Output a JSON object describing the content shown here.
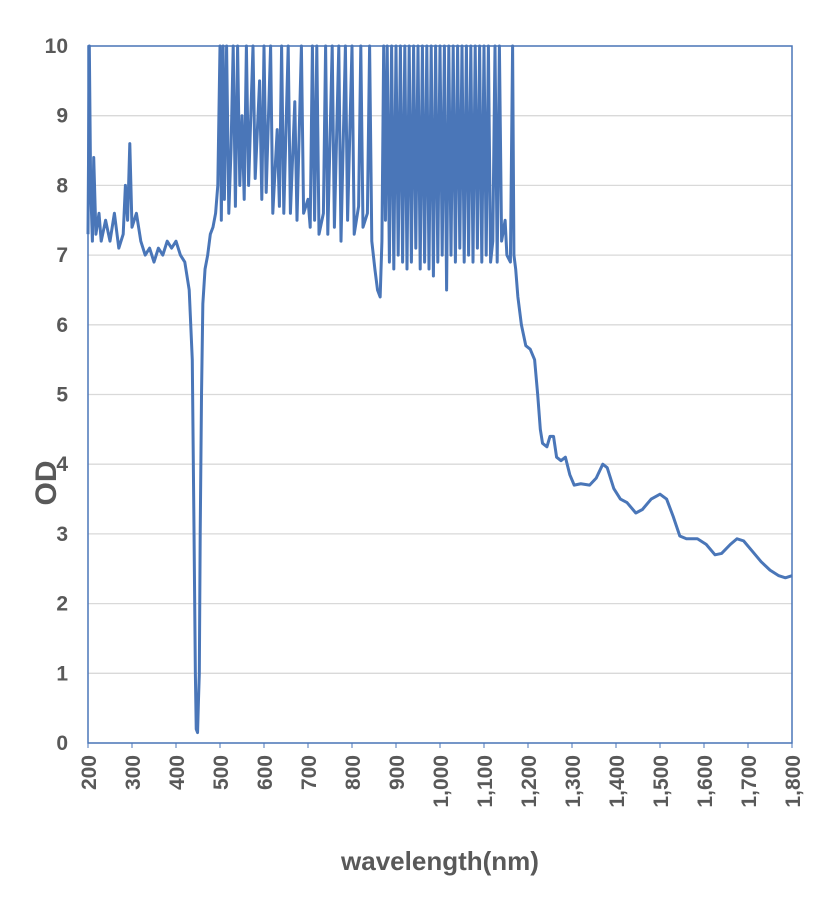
{
  "chart_data": {
    "type": "line",
    "x_label": "wavelength(nm)",
    "y_label": "OD",
    "color": "#4a76b8",
    "grid": true,
    "xlim": [
      200,
      1800
    ],
    "ylim": [
      0,
      10
    ],
    "xticks": [
      200,
      300,
      400,
      500,
      600,
      700,
      800,
      900,
      {
        "value": 1000,
        "label": "1,000"
      },
      {
        "value": 1100,
        "label": "1,100"
      },
      {
        "value": 1200,
        "label": "1,200"
      },
      {
        "value": 1300,
        "label": "1,300"
      },
      {
        "value": 1400,
        "label": "1,400"
      },
      {
        "value": 1500,
        "label": "1,500"
      },
      {
        "value": 1600,
        "label": "1,600"
      },
      {
        "value": 1700,
        "label": "1,700"
      },
      {
        "value": 1800,
        "label": "1,800"
      }
    ],
    "yticks": [
      0,
      1,
      2,
      3,
      4,
      5,
      6,
      7,
      8,
      9,
      10
    ],
    "x": [
      200,
      203,
      206,
      210,
      213,
      218,
      225,
      230,
      240,
      250,
      260,
      270,
      280,
      285,
      290,
      295,
      300,
      310,
      320,
      330,
      340,
      350,
      360,
      370,
      380,
      390,
      400,
      410,
      420,
      430,
      437,
      441,
      444,
      446,
      449,
      451,
      453,
      455,
      458,
      461,
      466,
      472,
      478,
      484,
      490,
      495,
      500,
      503,
      507,
      510,
      515,
      520,
      525,
      530,
      535,
      540,
      545,
      550,
      555,
      560,
      565,
      575,
      580,
      590,
      595,
      600,
      605,
      615,
      620,
      630,
      635,
      640,
      645,
      655,
      660,
      670,
      675,
      685,
      690,
      700,
      705,
      710,
      715,
      720,
      725,
      735,
      740,
      745,
      755,
      760,
      770,
      775,
      785,
      790,
      800,
      805,
      815,
      820,
      825,
      835,
      840,
      845,
      852,
      858,
      864,
      868,
      872,
      876,
      880,
      885,
      890,
      895,
      900,
      905,
      910,
      915,
      920,
      925,
      930,
      935,
      940,
      945,
      950,
      955,
      960,
      965,
      970,
      975,
      980,
      985,
      990,
      995,
      1000,
      1005,
      1010,
      1015,
      1020,
      1025,
      1030,
      1035,
      1040,
      1045,
      1050,
      1055,
      1060,
      1065,
      1070,
      1075,
      1080,
      1085,
      1090,
      1095,
      1100,
      1105,
      1110,
      1115,
      1120,
      1125,
      1130,
      1135,
      1140,
      1148,
      1152,
      1160,
      1165,
      1168,
      1172,
      1177,
      1185,
      1195,
      1205,
      1215,
      1222,
      1228,
      1233,
      1243,
      1250,
      1258,
      1265,
      1275,
      1285,
      1295,
      1305,
      1320,
      1340,
      1355,
      1370,
      1380,
      1395,
      1410,
      1425,
      1445,
      1460,
      1480,
      1500,
      1515,
      1530,
      1545,
      1560,
      1585,
      1605,
      1625,
      1640,
      1660,
      1675,
      1690,
      1710,
      1730,
      1750,
      1770,
      1785,
      1800
    ],
    "values": [
      7.3,
      10,
      8,
      7.2,
      8.4,
      7.3,
      7.6,
      7.2,
      7.5,
      7.2,
      7.6,
      7.1,
      7.3,
      8,
      7.5,
      8.6,
      7.4,
      7.6,
      7.2,
      7,
      7.1,
      6.9,
      7.1,
      7,
      7.2,
      7.1,
      7.2,
      7,
      6.9,
      6.5,
      5.5,
      3,
      1,
      0.2,
      0.15,
      0.6,
      1,
      3,
      5,
      6.3,
      6.8,
      7,
      7.3,
      7.4,
      7.6,
      8,
      10,
      7.5,
      10,
      7.8,
      10,
      7.6,
      8.5,
      10,
      7.7,
      10,
      8,
      9,
      7.8,
      10,
      8,
      10,
      8.1,
      9.5,
      7.8,
      10,
      7.9,
      10,
      7.6,
      8.8,
      7.7,
      10,
      7.6,
      10,
      7.6,
      9.2,
      7.5,
      10,
      7.6,
      7.8,
      7.4,
      10,
      7.5,
      10,
      7.3,
      7.6,
      10,
      7.3,
      10,
      7.4,
      10,
      7.2,
      10,
      7.5,
      10,
      7.3,
      7.7,
      10,
      7.4,
      7.6,
      10,
      7.2,
      6.8,
      6.5,
      6.4,
      7.2,
      10,
      7.5,
      10,
      6.9,
      10,
      6.8,
      10,
      7,
      10,
      6.9,
      10,
      6.8,
      10,
      6.9,
      10,
      7.1,
      10,
      6.8,
      10,
      6.9,
      10,
      6.8,
      10,
      6.7,
      10,
      6.9,
      10,
      7,
      10,
      6.5,
      10,
      7,
      10,
      6.9,
      10,
      7.1,
      10,
      6.9,
      10,
      7,
      10,
      6.9,
      10,
      7.1,
      10,
      6.9,
      10,
      7,
      10,
      6.9,
      7.2,
      10,
      6.9,
      10,
      7.2,
      7.5,
      7,
      6.9,
      10,
      7,
      6.8,
      6.4,
      6,
      5.7,
      5.65,
      5.5,
      5,
      4.5,
      4.3,
      4.25,
      4.4,
      4.4,
      4.1,
      4.05,
      4.1,
      3.85,
      3.7,
      3.72,
      3.7,
      3.8,
      4,
      3.95,
      3.65,
      3.5,
      3.45,
      3.3,
      3.35,
      3.5,
      3.57,
      3.5,
      3.25,
      2.97,
      2.93,
      2.93,
      2.85,
      2.7,
      2.72,
      2.85,
      2.93,
      2.9,
      2.75,
      2.6,
      2.48,
      2.4,
      2.37,
      2.4
    ]
  }
}
